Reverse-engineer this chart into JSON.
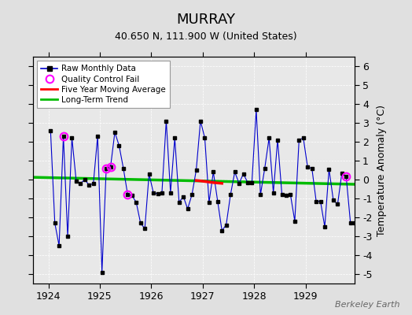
{
  "title": "MURRAY",
  "subtitle": "40.650 N, 111.900 W (United States)",
  "ylabel": "Temperature Anomaly (°C)",
  "watermark": "Berkeley Earth",
  "ylim": [
    -5.5,
    6.5
  ],
  "xlim": [
    1923.7,
    1929.95
  ],
  "yticks": [
    -5,
    -4,
    -3,
    -2,
    -1,
    0,
    1,
    2,
    3,
    4,
    5,
    6
  ],
  "xticks": [
    1924,
    1925,
    1926,
    1927,
    1928,
    1929
  ],
  "background_color": "#e0e0e0",
  "plot_background": "#e8e8e8",
  "raw_color": "#0000cc",
  "raw_marker_color": "black",
  "moving_avg_color": "red",
  "trend_color": "#00bb00",
  "qc_fail_color": "magenta",
  "raw_data": [
    [
      1924.042,
      2.6
    ],
    [
      1924.125,
      -2.3
    ],
    [
      1924.208,
      -3.5
    ],
    [
      1924.292,
      2.3
    ],
    [
      1924.375,
      -3.0
    ],
    [
      1924.458,
      2.2
    ],
    [
      1924.542,
      -0.1
    ],
    [
      1924.625,
      -0.2
    ],
    [
      1924.708,
      0.0
    ],
    [
      1924.792,
      -0.3
    ],
    [
      1924.875,
      -0.2
    ],
    [
      1924.958,
      2.3
    ],
    [
      1925.042,
      -4.9
    ],
    [
      1925.125,
      0.6
    ],
    [
      1925.208,
      0.65
    ],
    [
      1925.292,
      2.5
    ],
    [
      1925.375,
      1.8
    ],
    [
      1925.458,
      0.6
    ],
    [
      1925.542,
      -0.8
    ],
    [
      1925.625,
      -0.85
    ],
    [
      1925.708,
      -1.2
    ],
    [
      1925.792,
      -2.3
    ],
    [
      1925.875,
      -2.6
    ],
    [
      1925.958,
      0.3
    ],
    [
      1926.042,
      -0.7
    ],
    [
      1926.125,
      -0.75
    ],
    [
      1926.208,
      -0.7
    ],
    [
      1926.292,
      3.1
    ],
    [
      1926.375,
      -0.7
    ],
    [
      1926.458,
      2.2
    ],
    [
      1926.542,
      -1.2
    ],
    [
      1926.625,
      -0.9
    ],
    [
      1926.708,
      -1.55
    ],
    [
      1926.792,
      -0.8
    ],
    [
      1926.875,
      0.5
    ],
    [
      1926.958,
      3.1
    ],
    [
      1927.042,
      2.2
    ],
    [
      1927.125,
      -1.2
    ],
    [
      1927.208,
      0.4
    ],
    [
      1927.292,
      -1.15
    ],
    [
      1927.375,
      -2.7
    ],
    [
      1927.458,
      -2.4
    ],
    [
      1927.542,
      -0.8
    ],
    [
      1927.625,
      0.4
    ],
    [
      1927.708,
      -0.2
    ],
    [
      1927.792,
      0.3
    ],
    [
      1927.875,
      -0.15
    ],
    [
      1927.958,
      -0.15
    ],
    [
      1928.042,
      3.7
    ],
    [
      1928.125,
      -0.8
    ],
    [
      1928.208,
      0.6
    ],
    [
      1928.292,
      2.2
    ],
    [
      1928.375,
      -0.7
    ],
    [
      1928.458,
      2.1
    ],
    [
      1928.542,
      -0.8
    ],
    [
      1928.625,
      -0.85
    ],
    [
      1928.708,
      -0.8
    ],
    [
      1928.792,
      -2.2
    ],
    [
      1928.875,
      2.1
    ],
    [
      1928.958,
      2.2
    ],
    [
      1929.042,
      0.65
    ],
    [
      1929.125,
      0.6
    ],
    [
      1929.208,
      -1.15
    ],
    [
      1929.292,
      -1.15
    ],
    [
      1929.375,
      -2.5
    ],
    [
      1929.458,
      0.55
    ],
    [
      1929.542,
      -1.1
    ],
    [
      1929.625,
      -1.3
    ],
    [
      1929.708,
      0.35
    ],
    [
      1929.792,
      0.15
    ],
    [
      1929.875,
      -2.3
    ],
    [
      1929.958,
      -2.3
    ]
  ],
  "qc_fail_points": [
    [
      1924.292,
      2.3
    ],
    [
      1925.125,
      0.6
    ],
    [
      1925.208,
      0.65
    ],
    [
      1925.542,
      -0.8
    ],
    [
      1929.792,
      0.15
    ]
  ],
  "moving_avg_data": [
    [
      1926.875,
      -0.05
    ],
    [
      1926.958,
      -0.07
    ],
    [
      1927.042,
      -0.1
    ],
    [
      1927.125,
      -0.13
    ],
    [
      1927.208,
      -0.16
    ],
    [
      1927.292,
      -0.18
    ],
    [
      1927.375,
      -0.2
    ]
  ],
  "trend_data": [
    [
      1923.7,
      0.12
    ],
    [
      1929.95,
      -0.25
    ]
  ],
  "legend_labels": [
    "Raw Monthly Data",
    "Quality Control Fail",
    "Five Year Moving Average",
    "Long-Term Trend"
  ]
}
